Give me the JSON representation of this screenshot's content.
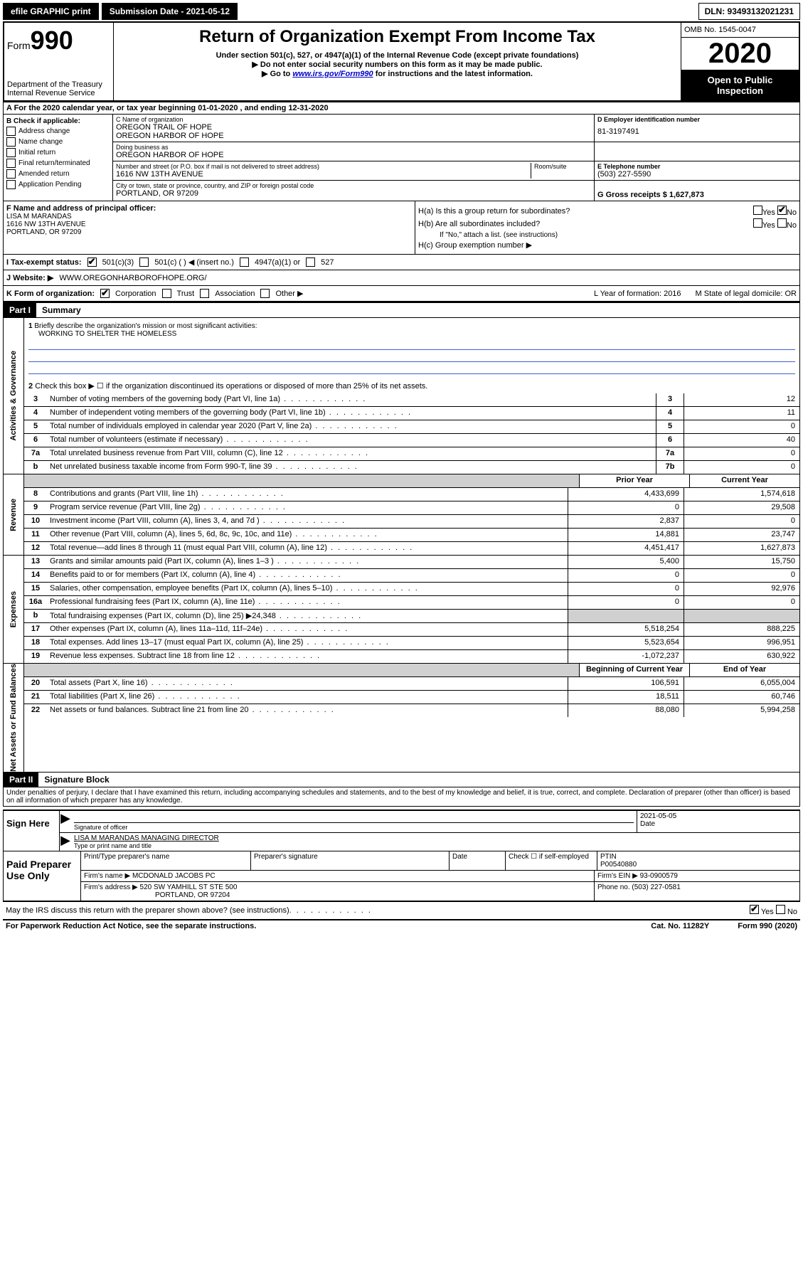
{
  "topbar": {
    "efile": "efile GRAPHIC print",
    "submission": "Submission Date - 2021-05-12",
    "dln": "DLN: 93493132021231"
  },
  "header": {
    "form_label": "Form",
    "form_num": "990",
    "dept": "Department of the Treasury",
    "irs": "Internal Revenue Service",
    "title": "Return of Organization Exempt From Income Tax",
    "subtitle": "Under section 501(c), 527, or 4947(a)(1) of the Internal Revenue Code (except private foundations)",
    "arrow1": "▶ Do not enter social security numbers on this form as it may be made public.",
    "arrow2_pre": "▶ Go to ",
    "arrow2_link": "www.irs.gov/Form990",
    "arrow2_post": " for instructions and the latest information.",
    "omb": "OMB No. 1545-0047",
    "year": "2020",
    "open": "Open to Public Inspection"
  },
  "section_a": "A For the 2020 calendar year, or tax year beginning 01-01-2020    , and ending 12-31-2020",
  "col_b": {
    "label": "B Check if applicable:",
    "items": [
      "Address change",
      "Name change",
      "Initial return",
      "Final return/terminated",
      "Amended return",
      "Application Pending"
    ]
  },
  "entity": {
    "c_name_lbl": "C Name of organization",
    "c_name1": "OREGON TRAIL OF HOPE",
    "c_name2": "OREGON HARBOR OF HOPE",
    "dba_lbl": "Doing business as",
    "dba": "OREGON HARBOR OF HOPE",
    "addr_lbl": "Number and street (or P.O. box if mail is not delivered to street address)",
    "room_lbl": "Room/suite",
    "addr": "1616 NW 13TH AVENUE",
    "city_lbl": "City or town, state or province, country, and ZIP or foreign postal code",
    "city": "PORTLAND, OR  97209",
    "d_lbl": "D Employer identification number",
    "d_val": "81-3197491",
    "e_lbl": "E Telephone number",
    "e_val": "(503) 227-5590",
    "g_lbl": "G Gross receipts $ 1,627,873"
  },
  "f_officer": {
    "lbl": "F  Name and address of principal officer:",
    "name": "LISA M MARANDAS",
    "addr1": "1616 NW 13TH AVENUE",
    "addr2": "PORTLAND, OR  97209"
  },
  "h": {
    "a": "H(a)  Is this a group return for subordinates?",
    "b": "H(b)  Are all subordinates included?",
    "b_note": "If \"No,\" attach a list. (see instructions)",
    "c": "H(c)  Group exemption number ▶",
    "yes": "Yes",
    "no": "No"
  },
  "i": {
    "lbl": "I    Tax-exempt status:",
    "opts": [
      "501(c)(3)",
      "501(c) (   ) ◀ (insert no.)",
      "4947(a)(1) or",
      "527"
    ]
  },
  "j": {
    "lbl": "J    Website: ▶",
    "val": "WWW.OREGONHARBOROFHOPE.ORG/"
  },
  "k": {
    "lbl": "K Form of organization:",
    "opts": [
      "Corporation",
      "Trust",
      "Association",
      "Other ▶"
    ],
    "l_lbl": "L Year of formation: 2016",
    "m_lbl": "M State of legal domicile: OR"
  },
  "part1": {
    "hdr": "Part I",
    "title": "Summary"
  },
  "gov": {
    "tab": "Activities & Governance",
    "l1": "Briefly describe the organization's mission or most significant activities:",
    "l1_val": "WORKING TO SHELTER THE HOMELESS",
    "l2": "Check this box ▶ ☐  if the organization discontinued its operations or disposed of more than 25% of its net assets.",
    "lines": [
      {
        "n": "3",
        "d": "Number of voting members of the governing body (Part VI, line 1a)",
        "box": "3",
        "v": "12"
      },
      {
        "n": "4",
        "d": "Number of independent voting members of the governing body (Part VI, line 1b)",
        "box": "4",
        "v": "11"
      },
      {
        "n": "5",
        "d": "Total number of individuals employed in calendar year 2020 (Part V, line 2a)",
        "box": "5",
        "v": "0"
      },
      {
        "n": "6",
        "d": "Total number of volunteers (estimate if necessary)",
        "box": "6",
        "v": "40"
      },
      {
        "n": "7a",
        "d": "Total unrelated business revenue from Part VIII, column (C), line 12",
        "box": "7a",
        "v": "0"
      },
      {
        "n": "b",
        "d": "Net unrelated business taxable income from Form 990-T, line 39",
        "box": "7b",
        "v": "0"
      }
    ]
  },
  "rev": {
    "tab": "Revenue",
    "hdr_prior": "Prior Year",
    "hdr_curr": "Current Year",
    "lines": [
      {
        "n": "8",
        "d": "Contributions and grants (Part VIII, line 1h)",
        "p": "4,433,699",
        "c": "1,574,618"
      },
      {
        "n": "9",
        "d": "Program service revenue (Part VIII, line 2g)",
        "p": "0",
        "c": "29,508"
      },
      {
        "n": "10",
        "d": "Investment income (Part VIII, column (A), lines 3, 4, and 7d )",
        "p": "2,837",
        "c": "0"
      },
      {
        "n": "11",
        "d": "Other revenue (Part VIII, column (A), lines 5, 6d, 8c, 9c, 10c, and 11e)",
        "p": "14,881",
        "c": "23,747"
      },
      {
        "n": "12",
        "d": "Total revenue—add lines 8 through 11 (must equal Part VIII, column (A), line 12)",
        "p": "4,451,417",
        "c": "1,627,873"
      }
    ]
  },
  "exp": {
    "tab": "Expenses",
    "lines": [
      {
        "n": "13",
        "d": "Grants and similar amounts paid (Part IX, column (A), lines 1–3 )",
        "p": "5,400",
        "c": "15,750"
      },
      {
        "n": "14",
        "d": "Benefits paid to or for members (Part IX, column (A), line 4)",
        "p": "0",
        "c": "0"
      },
      {
        "n": "15",
        "d": "Salaries, other compensation, employee benefits (Part IX, column (A), lines 5–10)",
        "p": "0",
        "c": "92,976"
      },
      {
        "n": "16a",
        "d": "Professional fundraising fees (Part IX, column (A), line 11e)",
        "p": "0",
        "c": "0"
      },
      {
        "n": "b",
        "d": "Total fundraising expenses (Part IX, column (D), line 25) ▶24,348",
        "p": "",
        "c": "",
        "shaded": true
      },
      {
        "n": "17",
        "d": "Other expenses (Part IX, column (A), lines 11a–11d, 11f–24e)",
        "p": "5,518,254",
        "c": "888,225"
      },
      {
        "n": "18",
        "d": "Total expenses. Add lines 13–17 (must equal Part IX, column (A), line 25)",
        "p": "5,523,654",
        "c": "996,951"
      },
      {
        "n": "19",
        "d": "Revenue less expenses. Subtract line 18 from line 12",
        "p": "-1,072,237",
        "c": "630,922"
      }
    ]
  },
  "net": {
    "tab": "Net Assets or Fund Balances",
    "hdr_beg": "Beginning of Current Year",
    "hdr_end": "End of Year",
    "lines": [
      {
        "n": "20",
        "d": "Total assets (Part X, line 16)",
        "p": "106,591",
        "c": "6,055,004"
      },
      {
        "n": "21",
        "d": "Total liabilities (Part X, line 26)",
        "p": "18,511",
        "c": "60,746"
      },
      {
        "n": "22",
        "d": "Net assets or fund balances. Subtract line 21 from line 20",
        "p": "88,080",
        "c": "5,994,258"
      }
    ]
  },
  "part2": {
    "hdr": "Part II",
    "title": "Signature Block"
  },
  "perjury": "Under penalties of perjury, I declare that I have examined this return, including accompanying schedules and statements, and to the best of my knowledge and belief, it is true, correct, and complete. Declaration of preparer (other than officer) is based on all information of which preparer has any knowledge.",
  "sign": {
    "here": "Sign Here",
    "sig_lbl": "Signature of officer",
    "date": "2021-05-05",
    "date_lbl": "Date",
    "name": "LISA M MARANDAS MANAGING DIRECTOR",
    "name_lbl": "Type or print name and title"
  },
  "paid": {
    "lbl": "Paid Preparer Use Only",
    "h1": "Print/Type preparer's name",
    "h2": "Preparer's signature",
    "h3": "Date",
    "h4_pre": "Check ☐ if self-employed",
    "ptin_lbl": "PTIN",
    "ptin": "P00540880",
    "firm_lbl": "Firm's name     ▶",
    "firm": "MCDONALD JACOBS PC",
    "ein_lbl": "Firm's EIN ▶ 93-0900579",
    "addr_lbl": "Firm's address ▶",
    "addr1": "520 SW YAMHILL ST STE 500",
    "addr2": "PORTLAND, OR  97204",
    "phone_lbl": "Phone no. (503) 227-0581"
  },
  "discuss": {
    "q": "May the IRS discuss this return with the preparer shown above? (see instructions)",
    "yes": "Yes",
    "no": "No"
  },
  "footer": {
    "left": "For Paperwork Reduction Act Notice, see the separate instructions.",
    "mid": "Cat. No. 11282Y",
    "right": "Form 990 (2020)"
  }
}
